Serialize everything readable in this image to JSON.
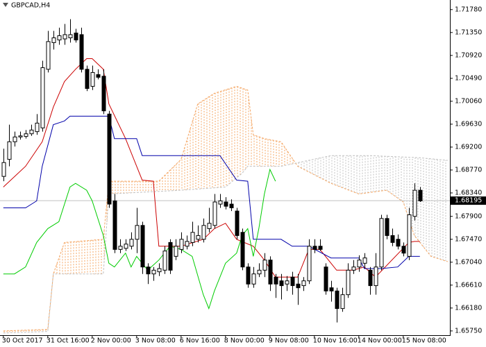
{
  "chart_data": {
    "type": "candlestick",
    "title": "GBPCAD,H4",
    "current_price": 1.68195,
    "xlim": [
      -0.6,
      80.4
    ],
    "ylim": [
      1.6567,
      1.7196
    ],
    "yticks": [
      {
        "value": 1.7178,
        "label": "1.71780"
      },
      {
        "value": 1.7135,
        "label": "1.71350"
      },
      {
        "value": 1.7092,
        "label": "1.70920"
      },
      {
        "value": 1.7049,
        "label": "1.70490"
      },
      {
        "value": 1.7006,
        "label": "1.70060"
      },
      {
        "value": 1.6963,
        "label": "1.69630"
      },
      {
        "value": 1.692,
        "label": "1.69200"
      },
      {
        "value": 1.6877,
        "label": "1.68770"
      },
      {
        "value": 1.6834,
        "label": "1.68340"
      },
      {
        "value": 1.679,
        "label": "1.67900"
      },
      {
        "value": 1.6747,
        "label": "1.67470"
      },
      {
        "value": 1.6704,
        "label": "1.67040"
      },
      {
        "value": 1.6661,
        "label": "1.66610"
      },
      {
        "value": 1.6618,
        "label": "1.66180"
      },
      {
        "value": 1.6575,
        "label": "1.65750"
      }
    ],
    "xticks": [
      {
        "value": 0,
        "label": "30 Oct 2017"
      },
      {
        "value": 8,
        "label": "31 Oct 16:00"
      },
      {
        "value": 16,
        "label": "2 Nov 00:00"
      },
      {
        "value": 24,
        "label": "3 Nov 08:00"
      },
      {
        "value": 32,
        "label": "6 Nov 16:00"
      },
      {
        "value": 40,
        "label": "8 Nov 00:00"
      },
      {
        "value": 48,
        "label": "9 Nov 08:00"
      },
      {
        "value": 56,
        "label": "10 Nov 16:00"
      },
      {
        "value": 64,
        "label": "14 Nov 00:00"
      },
      {
        "value": 72,
        "label": "15 Nov 08:00"
      }
    ],
    "ohlc": [
      [
        1.6865,
        1.6917,
        1.6856,
        1.6891
      ],
      [
        1.6897,
        1.6962,
        1.6884,
        1.693
      ],
      [
        1.693,
        1.6949,
        1.6921,
        1.6939
      ],
      [
        1.6939,
        1.6949,
        1.6934,
        1.6941
      ],
      [
        1.694,
        1.6952,
        1.6936,
        1.6945
      ],
      [
        1.6945,
        1.6962,
        1.6941,
        1.6952
      ],
      [
        1.6949,
        1.6982,
        1.6943,
        1.6965
      ],
      [
        1.6956,
        1.7082,
        1.6949,
        1.7069
      ],
      [
        1.7066,
        1.7138,
        1.706,
        1.7118
      ],
      [
        1.7116,
        1.7138,
        1.7103,
        1.7125
      ],
      [
        1.7121,
        1.7144,
        1.7112,
        1.7129
      ],
      [
        1.7123,
        1.7151,
        1.7112,
        1.7131
      ],
      [
        1.7125,
        1.716,
        1.7116,
        1.7131
      ],
      [
        1.7134,
        1.7142,
        1.7116,
        1.7121
      ],
      [
        1.7131,
        1.7144,
        1.706,
        1.7066
      ],
      [
        1.7066,
        1.7073,
        1.7025,
        1.703
      ],
      [
        1.7034,
        1.7073,
        1.7027,
        1.706
      ],
      [
        1.7056,
        1.7066,
        1.7047,
        1.7051
      ],
      [
        1.7053,
        1.7066,
        1.6982,
        1.6988
      ],
      [
        1.6982,
        1.6988,
        1.6806,
        1.6813
      ],
      [
        1.6819,
        1.6832,
        1.6721,
        1.6728
      ],
      [
        1.6728,
        1.6747,
        1.6721,
        1.6734
      ],
      [
        1.673,
        1.6747,
        1.6725,
        1.6738
      ],
      [
        1.6734,
        1.676,
        1.6728,
        1.6747
      ],
      [
        1.6747,
        1.6806,
        1.6721,
        1.6773
      ],
      [
        1.6773,
        1.678,
        1.6682,
        1.6695
      ],
      [
        1.6695,
        1.6702,
        1.6663,
        1.6682
      ],
      [
        1.6682,
        1.6695,
        1.6669,
        1.6689
      ],
      [
        1.6686,
        1.6702,
        1.6678,
        1.6692
      ],
      [
        1.6689,
        1.6734,
        1.6682,
        1.6725
      ],
      [
        1.6741,
        1.6747,
        1.6682,
        1.6689
      ],
      [
        1.6715,
        1.6747,
        1.6708,
        1.6734
      ],
      [
        1.6728,
        1.676,
        1.6721,
        1.6747
      ],
      [
        1.6734,
        1.6754,
        1.6728,
        1.6743
      ],
      [
        1.6741,
        1.678,
        1.6734,
        1.676
      ],
      [
        1.6747,
        1.6773,
        1.6741,
        1.6754
      ],
      [
        1.6747,
        1.6786,
        1.6741,
        1.6773
      ],
      [
        1.6767,
        1.6806,
        1.676,
        1.6777
      ],
      [
        1.6773,
        1.6832,
        1.6767,
        1.6817
      ],
      [
        1.6813,
        1.6832,
        1.6806,
        1.6819
      ],
      [
        1.6817,
        1.6826,
        1.6803,
        1.6809
      ],
      [
        1.6813,
        1.6822,
        1.68,
        1.6806
      ],
      [
        1.68,
        1.6806,
        1.6747,
        1.6754
      ],
      [
        1.676,
        1.6767,
        1.6689,
        1.6695
      ],
      [
        1.6695,
        1.6702,
        1.6656,
        1.6663
      ],
      [
        1.6663,
        1.6695,
        1.6656,
        1.6682
      ],
      [
        1.6682,
        1.6702,
        1.6676,
        1.6689
      ],
      [
        1.6689,
        1.6721,
        1.6676,
        1.6708
      ],
      [
        1.6708,
        1.6715,
        1.665,
        1.6663
      ],
      [
        1.6676,
        1.6682,
        1.6637,
        1.6663
      ],
      [
        1.6669,
        1.6682,
        1.6634,
        1.666
      ],
      [
        1.6663,
        1.6678,
        1.665,
        1.6669
      ],
      [
        1.6676,
        1.6686,
        1.6643,
        1.666
      ],
      [
        1.6663,
        1.6682,
        1.6624,
        1.6656
      ],
      [
        1.666,
        1.6676,
        1.665,
        1.6669
      ],
      [
        1.6669,
        1.6747,
        1.6663,
        1.6734
      ],
      [
        1.6734,
        1.6747,
        1.6721,
        1.6728
      ],
      [
        1.6734,
        1.6747,
        1.6725,
        1.6728
      ],
      [
        1.6695,
        1.6702,
        1.6643,
        1.665
      ],
      [
        1.6656,
        1.6669,
        1.663,
        1.665
      ],
      [
        1.665,
        1.6656,
        1.6591,
        1.6617
      ],
      [
        1.6617,
        1.6656,
        1.6611,
        1.6643
      ],
      [
        1.6643,
        1.6702,
        1.6637,
        1.6689
      ],
      [
        1.6689,
        1.6708,
        1.6682,
        1.6695
      ],
      [
        1.6695,
        1.6717,
        1.6686,
        1.6708
      ],
      [
        1.6702,
        1.6721,
        1.6692,
        1.6712
      ],
      [
        1.6689,
        1.6695,
        1.6643,
        1.666
      ],
      [
        1.666,
        1.6721,
        1.6643,
        1.6695
      ],
      [
        1.6695,
        1.6793,
        1.6689,
        1.6786
      ],
      [
        1.6786,
        1.6793,
        1.6747,
        1.6754
      ],
      [
        1.6754,
        1.6767,
        1.6734,
        1.6741
      ],
      [
        1.6747,
        1.6756,
        1.6728,
        1.6734
      ],
      [
        1.6734,
        1.6741,
        1.6715,
        1.6721
      ],
      [
        1.6715,
        1.6806,
        1.6708,
        1.6793
      ],
      [
        1.679,
        1.6852,
        1.6782,
        1.6839
      ],
      [
        1.6839,
        1.6845,
        1.6817,
        1.6819
      ]
    ],
    "lines": [
      {
        "color": "#cc0000",
        "x": [
          0,
          4,
          7,
          9,
          11,
          13,
          15,
          16,
          18,
          19,
          22,
          25,
          27,
          28,
          32,
          36,
          38,
          40,
          42,
          45,
          47,
          49,
          53,
          55,
          57,
          60,
          63,
          65,
          67,
          73,
          74,
          75
        ],
        "values": [
          1.6845,
          1.6884,
          1.693,
          1.6995,
          1.7043,
          1.7066,
          1.7086,
          1.7086,
          1.7066,
          1.7001,
          1.6936,
          1.6858,
          1.6856,
          1.6734,
          1.6734,
          1.6747,
          1.6767,
          1.6777,
          1.6747,
          1.6734,
          1.6708,
          1.6676,
          1.6676,
          1.6728,
          1.6728,
          1.6689,
          1.6689,
          1.6695,
          1.6676,
          1.6741,
          1.6743,
          1.6743
        ]
      },
      {
        "color": "#0000aa",
        "x": [
          0,
          4,
          6,
          7,
          9,
          11,
          12,
          19,
          20,
          24,
          25,
          39,
          42,
          44,
          45,
          50,
          52,
          55,
          59,
          64,
          65,
          68,
          71,
          73,
          75
        ],
        "values": [
          1.6806,
          1.6806,
          1.6819,
          1.6884,
          1.6962,
          1.6969,
          1.6978,
          1.6978,
          1.6936,
          1.6936,
          1.6904,
          1.6904,
          1.6858,
          1.6856,
          1.6747,
          1.6747,
          1.6734,
          1.6734,
          1.6712,
          1.6712,
          1.6692,
          1.6692,
          1.6695,
          1.6715,
          1.6715
        ]
      },
      {
        "color": "#00cc00",
        "x": [
          0,
          2,
          4,
          6,
          8,
          10,
          12,
          13,
          15,
          16,
          18,
          19,
          20,
          22,
          23,
          24,
          26,
          28,
          30,
          32,
          34,
          36,
          37,
          38,
          40,
          42,
          43,
          44,
          45,
          46,
          47,
          48,
          49
        ],
        "values": [
          1.6682,
          1.6682,
          1.6695,
          1.6741,
          1.6767,
          1.678,
          1.6845,
          1.6852,
          1.6839,
          1.6819,
          1.6754,
          1.6702,
          1.6695,
          1.6721,
          1.6695,
          1.6715,
          1.6689,
          1.6708,
          1.6734,
          1.6728,
          1.6715,
          1.6643,
          1.6617,
          1.665,
          1.6702,
          1.6721,
          1.6754,
          1.6767,
          1.6715,
          1.6767,
          1.6832,
          1.6878,
          1.6856
        ]
      }
    ],
    "span_a": {
      "color": "#f4a460",
      "x": [
        0,
        8,
        9,
        11,
        18,
        19,
        28,
        32,
        35,
        38,
        42,
        44,
        45,
        47,
        50,
        53,
        59,
        64,
        69,
        72,
        74,
        77,
        80
      ],
      "values": [
        1.6575,
        1.6578,
        1.6682,
        1.6741,
        1.6747,
        1.6856,
        1.6856,
        1.6897,
        1.7001,
        1.7021,
        1.7034,
        1.7027,
        1.6943,
        1.6936,
        1.693,
        1.6884,
        1.6852,
        1.6832,
        1.6839,
        1.6817,
        1.6754,
        1.6715,
        1.6705
      ]
    },
    "span_b": {
      "color": "#c0c0c0",
      "x": [
        0,
        8,
        9,
        18,
        19,
        32,
        40,
        43,
        44,
        50,
        59,
        66,
        75,
        80
      ],
      "values": [
        1.6571,
        1.6574,
        1.6682,
        1.6682,
        1.6832,
        1.6839,
        1.6845,
        1.6871,
        1.6884,
        1.6884,
        1.6904,
        1.6904,
        1.69,
        1.6895
      ]
    }
  }
}
